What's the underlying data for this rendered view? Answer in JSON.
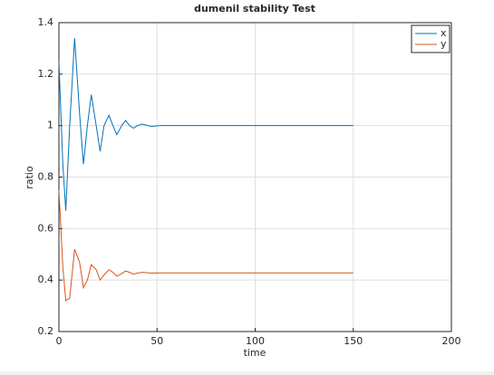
{
  "chart_data": {
    "type": "line",
    "title": "dumenil stability Test",
    "x_label": "time",
    "y_label": "ratio",
    "x": [
      0,
      2,
      3.5,
      5.5,
      8,
      10.5,
      12.5,
      14.5,
      16.5,
      19,
      21,
      23,
      25.5,
      27.5,
      29.5,
      32,
      34,
      36,
      38,
      40,
      42.5,
      47,
      52,
      150
    ],
    "series": [
      {
        "name": "x",
        "color": "#0072bd",
        "values": [
          1.25,
          0.85,
          0.67,
          1.0,
          1.34,
          1.05,
          0.85,
          1.0,
          1.12,
          1.0,
          0.9,
          1.0,
          1.04,
          1.0,
          0.965,
          1.0,
          1.02,
          1.0,
          0.99,
          1.0,
          1.006,
          0.997,
          1.0,
          1.0
        ]
      },
      {
        "name": "y",
        "color": "#d95319",
        "values": [
          0.75,
          0.45,
          0.32,
          0.33,
          0.52,
          0.47,
          0.37,
          0.4,
          0.46,
          0.44,
          0.4,
          0.42,
          0.44,
          0.43,
          0.415,
          0.425,
          0.435,
          0.43,
          0.423,
          0.427,
          0.43,
          0.427,
          0.428,
          0.428
        ]
      }
    ],
    "xlim": [
      0,
      200
    ],
    "xticks": [
      0,
      50,
      100,
      150,
      200
    ],
    "ylim": [
      0.2,
      1.4
    ],
    "yticks": [
      0.2,
      0.4,
      0.6,
      0.8,
      1,
      1.2,
      1.4
    ],
    "grid": true,
    "legend": "top-right"
  }
}
